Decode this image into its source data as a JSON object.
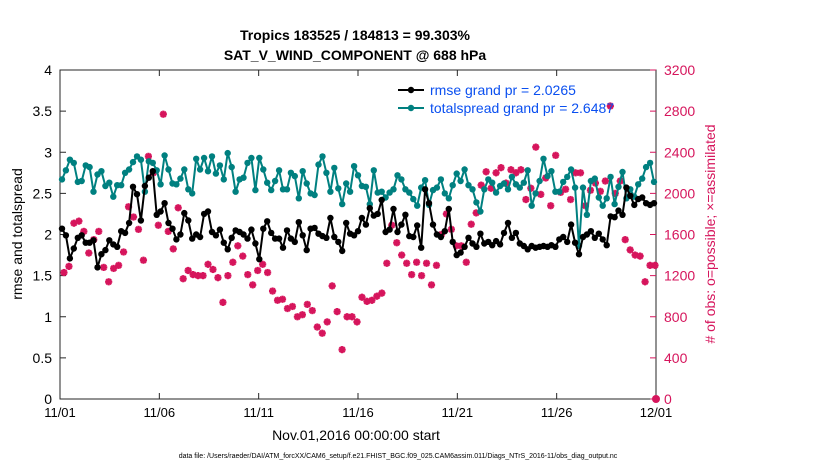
{
  "chart_data": {
    "type": "line",
    "title": "Tropics 183525 / 184813 = 99.303%",
    "subtitle": "SAT_V_WIND_COMPONENT @ 688 hPa",
    "xlabel": "Nov.01,2016 00:00:00 start",
    "ylabel": "rmse and totalspread",
    "y2label": "# of obs: o=possible; ×=assimilated",
    "footer": "data file: /Users/raeder/DAI/ATM_forcXX/CAM6_setup/f.e21.FHIST_BGC.f09_025.CAM6assim.011/Diags_NTrS_2016-11/obs_diag_output.nc",
    "x_range": [
      0,
      30
    ],
    "x_ticks": [
      {
        "x": 0,
        "label": "11/01"
      },
      {
        "x": 5,
        "label": "11/06"
      },
      {
        "x": 10,
        "label": "11/11"
      },
      {
        "x": 15,
        "label": "11/16"
      },
      {
        "x": 20,
        "label": "11/21"
      },
      {
        "x": 25,
        "label": "11/26"
      },
      {
        "x": 30,
        "label": "12/01"
      }
    ],
    "ylim": [
      0,
      4
    ],
    "y_ticks": [
      "0",
      "0.5",
      "1",
      "1.5",
      "2",
      "2.5",
      "3",
      "3.5",
      "4"
    ],
    "y2lim": [
      0,
      3200
    ],
    "y2_ticks": [
      "0",
      "400",
      "800",
      "1200",
      "1600",
      "2000",
      "2400",
      "2800",
      "3200"
    ],
    "grid": false,
    "legend_position": "top-right",
    "colors": {
      "rmse": "#000000",
      "spread": "#008080",
      "obs": "#d6155c",
      "legend_text": "#0a4ff0"
    },
    "series": [
      {
        "name": "rmse grand pr = 2.0265",
        "axis": "left",
        "values": [
          2.07,
          1.99,
          1.71,
          1.83,
          1.96,
          1.99,
          1.9,
          1.9,
          1.93,
          1.6,
          1.76,
          1.81,
          1.93,
          1.88,
          1.85,
          2.04,
          2.02,
          2.14,
          2.58,
          2.49,
          2.17,
          2.59,
          2.69,
          2.77,
          2.24,
          2.28,
          2.38,
          2.14,
          2.07,
          1.94,
          2.0,
          2.26,
          2.17,
          1.95,
          2.0,
          1.97,
          2.25,
          2.28,
          2.03,
          1.99,
          2.06,
          1.9,
          1.82,
          1.96,
          2.05,
          2.03,
          2.0,
          1.95,
          2.06,
          1.89,
          1.7,
          2.07,
          2.16,
          2.02,
          1.95,
          1.95,
          1.84,
          2.05,
          1.95,
          1.91,
          2.15,
          1.99,
          1.81,
          2.07,
          2.08,
          2.01,
          1.98,
          1.96,
          2.2,
          1.97,
          1.91,
          1.8,
          2.14,
          2.01,
          1.99,
          2.04,
          2.2,
          2.12,
          2.32,
          2.23,
          2.25,
          2.42,
          2.03,
          2.06,
          2.31,
          2.03,
          2.12,
          2.24,
          1.98,
          1.97,
          2.11,
          1.84,
          2.55,
          2.38,
          2.12,
          2.0,
          1.97,
          2.04,
          2.31,
          1.91,
          1.75,
          1.78,
          1.85,
          1.96,
          1.89,
          1.85,
          2.01,
          1.89,
          1.91,
          1.87,
          1.92,
          1.88,
          2.02,
          2.14,
          1.96,
          2.02,
          1.89,
          1.86,
          1.82,
          1.86,
          1.84,
          1.85,
          1.86,
          1.85,
          1.87,
          1.85,
          1.94,
          1.97,
          1.91,
          2.12,
          1.9,
          1.76,
          1.97,
          2.0,
          2.04,
          1.96,
          2.01,
          1.94,
          1.87,
          2.22,
          2.21,
          2.29,
          2.24,
          2.57,
          2.47,
          2.36,
          2.43,
          2.45,
          2.38,
          2.36,
          2.38
        ]
      },
      {
        "name": "totalspread grand pr = 2.6487",
        "axis": "left",
        "values": [
          2.67,
          2.78,
          2.91,
          2.87,
          2.64,
          2.65,
          2.84,
          2.82,
          2.52,
          2.73,
          2.77,
          2.59,
          2.63,
          2.46,
          2.6,
          2.6,
          2.75,
          2.79,
          2.88,
          2.95,
          2.91,
          2.52,
          2.89,
          2.87,
          2.78,
          2.61,
          2.96,
          2.79,
          2.62,
          2.61,
          2.68,
          2.79,
          2.55,
          2.5,
          2.92,
          2.79,
          2.93,
          2.77,
          2.95,
          2.74,
          2.84,
          2.67,
          2.99,
          2.82,
          2.52,
          2.67,
          2.69,
          2.87,
          2.93,
          2.54,
          2.93,
          2.79,
          2.63,
          2.54,
          2.65,
          2.78,
          2.55,
          2.55,
          2.75,
          2.71,
          2.44,
          2.77,
          2.62,
          2.5,
          2.48,
          2.85,
          2.95,
          2.75,
          2.52,
          2.81,
          2.56,
          2.37,
          2.62,
          2.52,
          2.83,
          2.72,
          2.59,
          2.58,
          2.37,
          2.78,
          2.51,
          2.52,
          2.45,
          2.51,
          2.55,
          2.72,
          2.67,
          2.55,
          2.51,
          2.43,
          2.35,
          2.57,
          2.66,
          2.36,
          2.54,
          2.57,
          2.67,
          2.5,
          2.44,
          2.6,
          2.74,
          2.65,
          2.79,
          2.6,
          2.55,
          2.39,
          2.28,
          2.55,
          2.67,
          2.63,
          2.51,
          2.59,
          2.62,
          2.55,
          2.7,
          2.61,
          2.57,
          2.63,
          2.78,
          2.35,
          2.5,
          2.65,
          2.92,
          2.71,
          2.77,
          2.52,
          2.52,
          2.64,
          2.7,
          2.79,
          2.57,
          1.86,
          2.57,
          2.24,
          2.65,
          2.68,
          2.45,
          2.35,
          2.44,
          2.7,
          2.37,
          2.58,
          2.76,
          2.44,
          2.55,
          2.46,
          2.61,
          2.68,
          2.82,
          2.87,
          2.64
        ]
      },
      {
        "name": "obs assimilated",
        "axis": "right",
        "points": [
          [
            0.2,
            1230
          ],
          [
            0.45,
            1290
          ],
          [
            0.7,
            1710
          ],
          [
            0.95,
            1730
          ],
          [
            1.2,
            1630
          ],
          [
            1.45,
            1420
          ],
          [
            1.7,
            1550
          ],
          [
            1.95,
            1630
          ],
          [
            2.2,
            1280
          ],
          [
            2.45,
            1140
          ],
          [
            2.7,
            1270
          ],
          [
            2.95,
            1300
          ],
          [
            3.2,
            1430
          ],
          [
            3.45,
            1870
          ],
          [
            3.7,
            1770
          ],
          [
            3.95,
            1650
          ],
          [
            4.2,
            1350
          ],
          [
            4.45,
            2360
          ],
          [
            4.7,
            2200
          ],
          [
            4.95,
            1690
          ],
          [
            5.2,
            2770
          ],
          [
            5.45,
            1630
          ],
          [
            5.7,
            1460
          ],
          [
            5.95,
            1860
          ],
          [
            6.2,
            1170
          ],
          [
            6.45,
            1250
          ],
          [
            6.7,
            1210
          ],
          [
            6.95,
            1200
          ],
          [
            7.2,
            1200
          ],
          [
            7.45,
            1310
          ],
          [
            7.7,
            1260
          ],
          [
            7.95,
            1180
          ],
          [
            8.2,
            940
          ],
          [
            8.45,
            1200
          ],
          [
            8.7,
            1330
          ],
          [
            8.95,
            1490
          ],
          [
            9.2,
            1390
          ],
          [
            9.45,
            1210
          ],
          [
            9.7,
            1110
          ],
          [
            9.95,
            1250
          ],
          [
            10.2,
            1310
          ],
          [
            10.45,
            1230
          ],
          [
            10.7,
            1050
          ],
          [
            10.95,
            960
          ],
          [
            11.2,
            970
          ],
          [
            11.45,
            880
          ],
          [
            11.7,
            900
          ],
          [
            11.95,
            800
          ],
          [
            12.2,
            820
          ],
          [
            12.45,
            920
          ],
          [
            12.7,
            860
          ],
          [
            12.95,
            700
          ],
          [
            13.2,
            640
          ],
          [
            13.45,
            750
          ],
          [
            13.7,
            1100
          ],
          [
            13.95,
            850
          ],
          [
            14.2,
            480
          ],
          [
            14.45,
            800
          ],
          [
            14.7,
            800
          ],
          [
            14.95,
            750
          ],
          [
            15.2,
            990
          ],
          [
            15.45,
            950
          ],
          [
            15.7,
            960
          ],
          [
            15.95,
            1000
          ],
          [
            16.2,
            1030
          ],
          [
            16.45,
            1320
          ],
          [
            16.7,
            1690
          ],
          [
            16.95,
            1520
          ],
          [
            17.2,
            1400
          ],
          [
            17.45,
            1320
          ],
          [
            17.7,
            1210
          ],
          [
            17.95,
            1330
          ],
          [
            18.2,
            1200
          ],
          [
            18.45,
            1320
          ],
          [
            18.7,
            1110
          ],
          [
            18.95,
            1300
          ],
          [
            19.2,
            1600
          ],
          [
            19.45,
            1800
          ],
          [
            19.7,
            1650
          ],
          [
            19.95,
            1490
          ],
          [
            20.2,
            1490
          ],
          [
            20.45,
            1330
          ],
          [
            20.7,
            1700
          ],
          [
            20.95,
            1810
          ],
          [
            21.2,
            2080
          ],
          [
            21.45,
            2210
          ],
          [
            21.7,
            2050
          ],
          [
            21.95,
            2200
          ],
          [
            22.2,
            2250
          ],
          [
            22.45,
            2100
          ],
          [
            22.7,
            2230
          ],
          [
            22.95,
            2200
          ],
          [
            23.2,
            2230
          ],
          [
            23.45,
            1940
          ],
          [
            23.7,
            2050
          ],
          [
            23.95,
            2450
          ],
          [
            24.2,
            1990
          ],
          [
            24.45,
            2150
          ],
          [
            24.7,
            1880
          ],
          [
            24.95,
            2370
          ],
          [
            25.2,
            2010
          ],
          [
            25.45,
            2040
          ],
          [
            25.7,
            1940
          ],
          [
            25.95,
            2200
          ],
          [
            26.2,
            2200
          ],
          [
            26.45,
            1880
          ],
          [
            26.7,
            2030
          ],
          [
            26.95,
            2100
          ],
          [
            27.2,
            2020
          ],
          [
            27.45,
            2120
          ],
          [
            27.7,
            2850
          ],
          [
            27.95,
            2000
          ],
          [
            28.2,
            2120
          ],
          [
            28.45,
            1550
          ],
          [
            28.7,
            1450
          ],
          [
            28.95,
            1400
          ],
          [
            29.2,
            1390
          ],
          [
            29.45,
            1140
          ],
          [
            29.7,
            1300
          ],
          [
            29.95,
            1300
          ]
        ]
      },
      {
        "name": "obs possible",
        "axis": "right",
        "points": [
          [
            30.0,
            0
          ]
        ]
      }
    ]
  }
}
